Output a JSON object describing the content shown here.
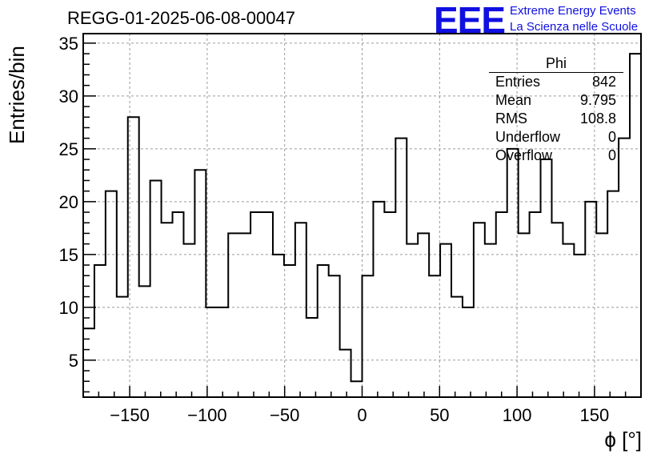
{
  "header": {
    "title": "REGG-01-2025-06-08-00047",
    "logo_text": "EEE",
    "logo_line1": "Extreme Energy Events",
    "logo_line2": "La Scienza nelle Scuole"
  },
  "stats_box": {
    "name": "Phi",
    "rows": [
      {
        "label": "Entries",
        "value": "842"
      },
      {
        "label": "Mean",
        "value": "9.795"
      },
      {
        "label": "RMS",
        "value": "108.8"
      },
      {
        "label": "Underflow",
        "value": "0"
      },
      {
        "label": "Overflow",
        "value": "0"
      }
    ]
  },
  "colors": {
    "line": "#000000",
    "grid": "#9a9a9a",
    "logo": "#1010e0"
  },
  "chart_data": {
    "type": "histogram",
    "title": "REGG-01-2025-06-08-00047",
    "xlabel": "ϕ [°]",
    "ylabel": "Entries/bin",
    "xlim": [
      -180,
      180
    ],
    "ylim": [
      1.5,
      35.9
    ],
    "bin_width": 7.2,
    "xticks": [
      -150,
      -100,
      -50,
      0,
      50,
      100,
      150
    ],
    "yticks": [
      5,
      10,
      15,
      20,
      25,
      30,
      35
    ],
    "grid": true,
    "values": [
      8,
      14,
      21,
      11,
      28,
      12,
      22,
      18,
      19,
      16,
      23,
      10,
      10,
      17,
      17,
      19,
      19,
      15,
      14,
      18,
      9,
      14,
      13,
      6,
      3,
      13,
      20,
      19,
      26,
      16,
      17,
      13,
      16,
      11,
      10,
      18,
      16,
      19,
      25,
      17,
      19,
      24,
      18,
      16,
      15,
      20,
      17,
      21,
      26,
      34
    ]
  }
}
